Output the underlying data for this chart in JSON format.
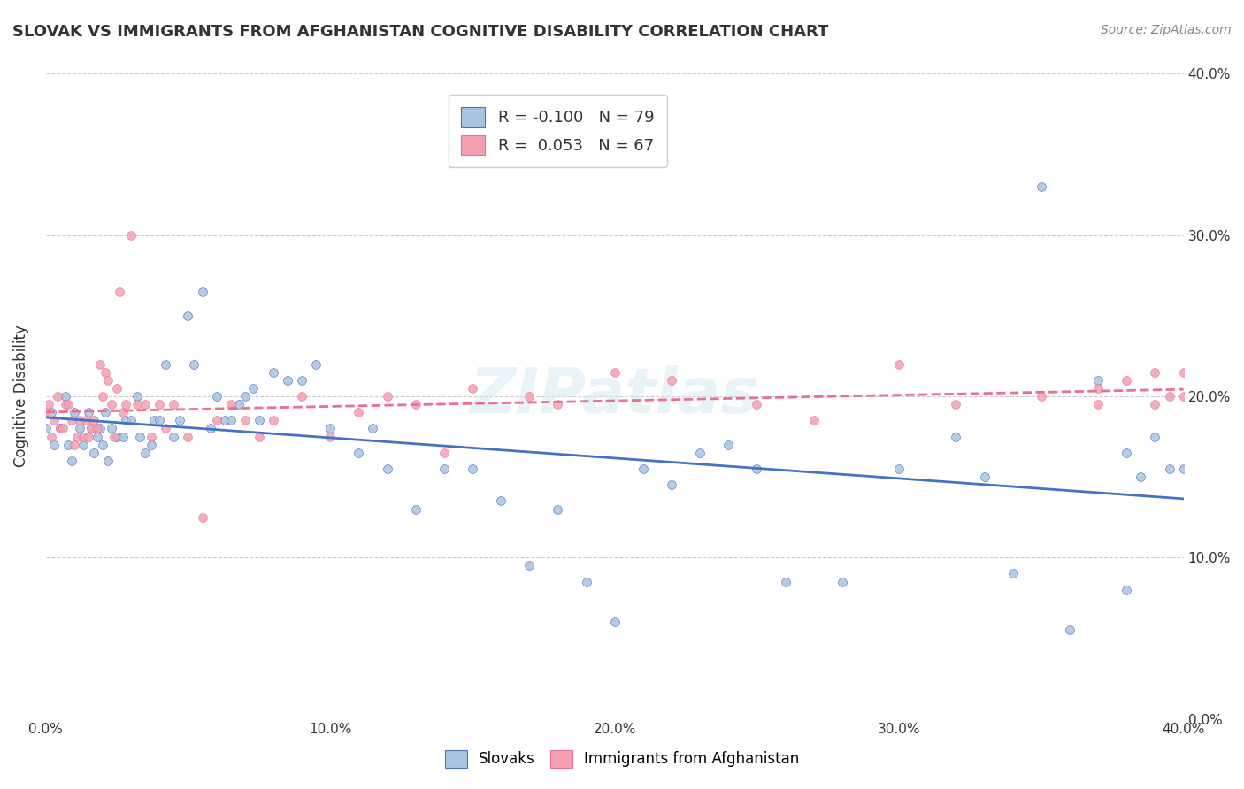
{
  "title": "SLOVAK VS IMMIGRANTS FROM AFGHANISTAN COGNITIVE DISABILITY CORRELATION CHART",
  "source": "Source: ZipAtlas.com",
  "xlabel_bottom": "",
  "ylabel": "Cognitive Disability",
  "x_min": 0.0,
  "x_max": 0.4,
  "y_min": 0.0,
  "y_max": 0.4,
  "blue_color": "#a8c4e0",
  "blue_line_color": "#4472c4",
  "pink_color": "#f4a0b0",
  "pink_line_color": "#e87090",
  "legend_blue_label": "R = -0.100   N = 79",
  "legend_pink_label": "R =  0.053   N = 67",
  "watermark": "ZIPatlas",
  "blue_R": -0.1,
  "blue_N": 79,
  "pink_R": 0.053,
  "pink_N": 67,
  "blue_scatter_x": [
    0.0,
    0.002,
    0.003,
    0.005,
    0.007,
    0.008,
    0.009,
    0.01,
    0.012,
    0.013,
    0.015,
    0.016,
    0.017,
    0.018,
    0.019,
    0.02,
    0.021,
    0.022,
    0.023,
    0.025,
    0.027,
    0.028,
    0.03,
    0.032,
    0.033,
    0.035,
    0.037,
    0.038,
    0.04,
    0.042,
    0.045,
    0.047,
    0.05,
    0.052,
    0.055,
    0.058,
    0.06,
    0.063,
    0.065,
    0.068,
    0.07,
    0.073,
    0.075,
    0.08,
    0.085,
    0.09,
    0.095,
    0.1,
    0.11,
    0.115,
    0.12,
    0.13,
    0.14,
    0.15,
    0.16,
    0.17,
    0.18,
    0.19,
    0.2,
    0.21,
    0.22,
    0.23,
    0.24,
    0.25,
    0.26,
    0.28,
    0.3,
    0.32,
    0.33,
    0.34,
    0.35,
    0.37,
    0.38,
    0.385,
    0.39,
    0.395,
    0.4,
    0.38,
    0.36
  ],
  "blue_scatter_y": [
    0.18,
    0.19,
    0.17,
    0.18,
    0.2,
    0.17,
    0.16,
    0.19,
    0.18,
    0.17,
    0.19,
    0.18,
    0.165,
    0.175,
    0.18,
    0.17,
    0.19,
    0.16,
    0.18,
    0.175,
    0.175,
    0.185,
    0.185,
    0.2,
    0.175,
    0.165,
    0.17,
    0.185,
    0.185,
    0.22,
    0.175,
    0.185,
    0.25,
    0.22,
    0.265,
    0.18,
    0.2,
    0.185,
    0.185,
    0.195,
    0.2,
    0.205,
    0.185,
    0.215,
    0.21,
    0.21,
    0.22,
    0.18,
    0.165,
    0.18,
    0.155,
    0.13,
    0.155,
    0.155,
    0.135,
    0.095,
    0.13,
    0.085,
    0.06,
    0.155,
    0.145,
    0.165,
    0.17,
    0.155,
    0.085,
    0.085,
    0.155,
    0.175,
    0.15,
    0.09,
    0.33,
    0.21,
    0.165,
    0.15,
    0.175,
    0.155,
    0.155,
    0.08,
    0.055
  ],
  "pink_scatter_x": [
    0.0,
    0.001,
    0.002,
    0.003,
    0.004,
    0.005,
    0.006,
    0.007,
    0.008,
    0.009,
    0.01,
    0.011,
    0.012,
    0.013,
    0.014,
    0.015,
    0.016,
    0.017,
    0.018,
    0.019,
    0.02,
    0.021,
    0.022,
    0.023,
    0.024,
    0.025,
    0.026,
    0.027,
    0.028,
    0.03,
    0.032,
    0.035,
    0.037,
    0.04,
    0.042,
    0.045,
    0.05,
    0.055,
    0.06,
    0.065,
    0.07,
    0.075,
    0.08,
    0.09,
    0.1,
    0.11,
    0.12,
    0.13,
    0.14,
    0.15,
    0.17,
    0.18,
    0.2,
    0.22,
    0.25,
    0.27,
    0.3,
    0.32,
    0.35,
    0.37,
    0.38,
    0.39,
    0.395,
    0.4,
    0.37,
    0.39,
    0.4
  ],
  "pink_scatter_y": [
    0.19,
    0.195,
    0.175,
    0.185,
    0.2,
    0.18,
    0.18,
    0.195,
    0.195,
    0.185,
    0.17,
    0.175,
    0.185,
    0.175,
    0.185,
    0.175,
    0.18,
    0.185,
    0.18,
    0.22,
    0.2,
    0.215,
    0.21,
    0.195,
    0.175,
    0.205,
    0.265,
    0.19,
    0.195,
    0.3,
    0.195,
    0.195,
    0.175,
    0.195,
    0.18,
    0.195,
    0.175,
    0.125,
    0.185,
    0.195,
    0.185,
    0.175,
    0.185,
    0.2,
    0.175,
    0.19,
    0.2,
    0.195,
    0.165,
    0.205,
    0.2,
    0.195,
    0.215,
    0.21,
    0.195,
    0.185,
    0.22,
    0.195,
    0.2,
    0.195,
    0.21,
    0.195,
    0.2,
    0.215,
    0.205,
    0.215,
    0.2
  ]
}
